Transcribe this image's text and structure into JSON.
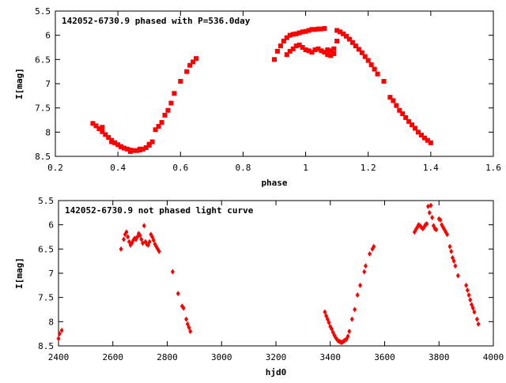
{
  "marker_color": "#ff0000",
  "chart_data": [
    {
      "type": "scatter",
      "title": "142052-6730.9 phased with P=536.0day",
      "xlabel": "phase",
      "ylabel": "I[mag]",
      "xlim": [
        0.2,
        1.6
      ],
      "ylim": [
        8.5,
        5.5
      ],
      "y_inverted": true,
      "xticks": [
        0.2,
        0.4,
        0.6,
        0.8,
        1,
        1.2,
        1.4,
        1.6
      ],
      "xtick_labels": [
        "0.2",
        "0.4",
        "0.6",
        "0.8",
        "1",
        "1.2",
        "1.4",
        "1.6"
      ],
      "yticks": [
        5.5,
        6,
        6.5,
        7,
        7.5,
        8,
        8.5
      ],
      "ytick_labels": [
        "5.5",
        "6",
        "6.5",
        "7",
        "7.5",
        "8",
        "8.5"
      ],
      "grid": false,
      "series": [
        {
          "x": [
            0.32,
            0.33,
            0.34,
            0.35,
            0.36,
            0.37,
            0.38,
            0.39,
            0.4,
            0.41,
            0.42,
            0.43,
            0.44,
            0.45,
            0.46,
            0.47,
            0.48,
            0.49,
            0.5,
            0.51,
            0.52,
            0.53,
            0.54,
            0.55,
            0.56,
            0.57,
            0.58,
            0.6,
            0.62,
            0.63,
            0.64,
            0.65,
            0.9,
            0.91,
            0.92,
            0.93,
            0.94,
            0.95,
            0.96,
            0.97,
            0.98,
            0.99,
            1.0,
            1.01,
            1.02,
            1.03,
            1.04,
            1.05,
            1.06,
            1.07,
            1.08,
            1.09,
            1.1,
            1.11,
            1.12,
            1.13,
            1.14,
            1.15,
            1.16,
            1.17,
            1.18,
            1.19,
            1.2,
            1.21,
            1.22,
            1.23,
            1.25,
            1.27,
            1.28,
            1.29,
            1.3,
            1.31,
            1.32,
            1.33,
            1.34,
            1.35,
            1.36,
            1.37,
            1.38,
            1.39,
            1.4,
            0.94,
            0.95,
            0.96,
            0.97,
            0.98,
            0.99,
            1.0,
            1.01,
            1.02,
            1.03,
            1.04,
            1.05,
            1.06,
            1.07,
            1.08,
            1.09,
            1.1,
            0.35,
            0.38,
            0.41,
            0.44,
            0.47,
            0.5
          ],
          "y": [
            7.82,
            7.87,
            7.93,
            7.99,
            8.05,
            8.11,
            8.17,
            8.22,
            8.26,
            8.3,
            8.33,
            8.35,
            8.37,
            8.38,
            8.38,
            8.37,
            8.35,
            8.32,
            8.27,
            8.2,
            7.95,
            7.88,
            7.8,
            7.65,
            7.55,
            7.4,
            7.2,
            6.95,
            6.75,
            6.62,
            6.55,
            6.48,
            6.5,
            6.33,
            6.22,
            6.12,
            6.05,
            6.0,
            5.98,
            5.97,
            5.95,
            5.93,
            5.92,
            5.9,
            5.88,
            5.88,
            5.87,
            5.87,
            5.86,
            6.3,
            6.32,
            6.28,
            5.9,
            5.93,
            5.97,
            6.02,
            6.08,
            6.15,
            6.22,
            6.29,
            6.36,
            6.44,
            6.52,
            6.61,
            6.7,
            6.8,
            6.95,
            7.28,
            7.35,
            7.45,
            7.55,
            7.62,
            7.7,
            7.78,
            7.85,
            7.92,
            8.0,
            8.06,
            8.12,
            8.17,
            8.22,
            6.4,
            6.33,
            6.28,
            6.22,
            6.2,
            6.25,
            6.3,
            6.32,
            6.35,
            6.3,
            6.28,
            6.32,
            6.35,
            6.4,
            6.42,
            6.38,
            6.12,
            7.9,
            8.2,
            8.3,
            8.4,
            8.35,
            8.25
          ]
        }
      ]
    },
    {
      "type": "scatter",
      "title": "142052-6730.9 not phased light curve",
      "xlabel": "hjd0",
      "ylabel": "I[mag]",
      "xlim": [
        2400,
        4000
      ],
      "ylim": [
        8.5,
        5.5
      ],
      "y_inverted": true,
      "xticks": [
        2400,
        2600,
        2800,
        3000,
        3200,
        3400,
        3600,
        3800,
        4000
      ],
      "xtick_labels": [
        "2400",
        "2600",
        "2800",
        "3000",
        "3200",
        "3400",
        "3600",
        "3800",
        "4000"
      ],
      "yticks": [
        5.5,
        6,
        6.5,
        7,
        7.5,
        8,
        8.5
      ],
      "ytick_labels": [
        "5.5",
        "6",
        "6.5",
        "7",
        "7.5",
        "8",
        "8.5"
      ],
      "grid": false,
      "series": [
        {
          "x": [
            2400,
            2404,
            2412,
            2630,
            2640,
            2645,
            2650,
            2655,
            2660,
            2665,
            2670,
            2675,
            2680,
            2685,
            2690,
            2695,
            2700,
            2705,
            2710,
            2715,
            2720,
            2725,
            2730,
            2735,
            2740,
            2745,
            2750,
            2755,
            2760,
            2765,
            2770,
            2820,
            2840,
            2855,
            2860,
            2870,
            2875,
            2880,
            2885,
            3380,
            3385,
            3390,
            3395,
            3400,
            3405,
            3410,
            3415,
            3420,
            3425,
            3430,
            3435,
            3440,
            3445,
            3450,
            3455,
            3460,
            3465,
            3470,
            3480,
            3490,
            3500,
            3510,
            3525,
            3530,
            3545,
            3555,
            3560,
            3710,
            3715,
            3720,
            3725,
            3730,
            3735,
            3740,
            3745,
            3750,
            3755,
            3760,
            3765,
            3770,
            3775,
            3780,
            3785,
            3790,
            3800,
            3805,
            3810,
            3815,
            3820,
            3825,
            3830,
            3840,
            3845,
            3850,
            3855,
            3860,
            3870,
            3900,
            3905,
            3910,
            3915,
            3920,
            3925,
            3930,
            3940,
            3945
          ],
          "y": [
            8.35,
            8.25,
            8.18,
            6.5,
            6.3,
            6.2,
            6.15,
            6.25,
            6.35,
            6.42,
            6.38,
            6.32,
            6.28,
            6.3,
            6.25,
            6.18,
            6.22,
            6.3,
            6.38,
            6.02,
            6.35,
            6.4,
            6.42,
            6.35,
            6.2,
            6.25,
            6.32,
            6.4,
            6.45,
            6.5,
            6.55,
            6.97,
            7.42,
            7.68,
            7.72,
            7.95,
            8.05,
            8.12,
            8.2,
            7.8,
            7.88,
            7.95,
            8.02,
            8.1,
            8.15,
            8.22,
            8.28,
            8.33,
            8.37,
            8.4,
            8.41,
            8.43,
            8.42,
            8.4,
            8.38,
            8.36,
            8.3,
            8.2,
            7.95,
            7.75,
            7.45,
            7.25,
            6.97,
            6.85,
            6.6,
            6.5,
            6.45,
            6.15,
            6.1,
            6.05,
            6.0,
            6.02,
            6.05,
            6.08,
            6.05,
            6.0,
            5.98,
            5.62,
            5.75,
            5.6,
            5.85,
            6.02,
            6.08,
            6.1,
            5.88,
            5.9,
            6.0,
            6.05,
            6.1,
            6.15,
            6.2,
            6.45,
            6.55,
            6.68,
            6.75,
            6.85,
            7.05,
            7.25,
            7.35,
            7.45,
            7.55,
            7.65,
            7.72,
            7.8,
            7.95,
            8.05
          ]
        }
      ]
    }
  ]
}
